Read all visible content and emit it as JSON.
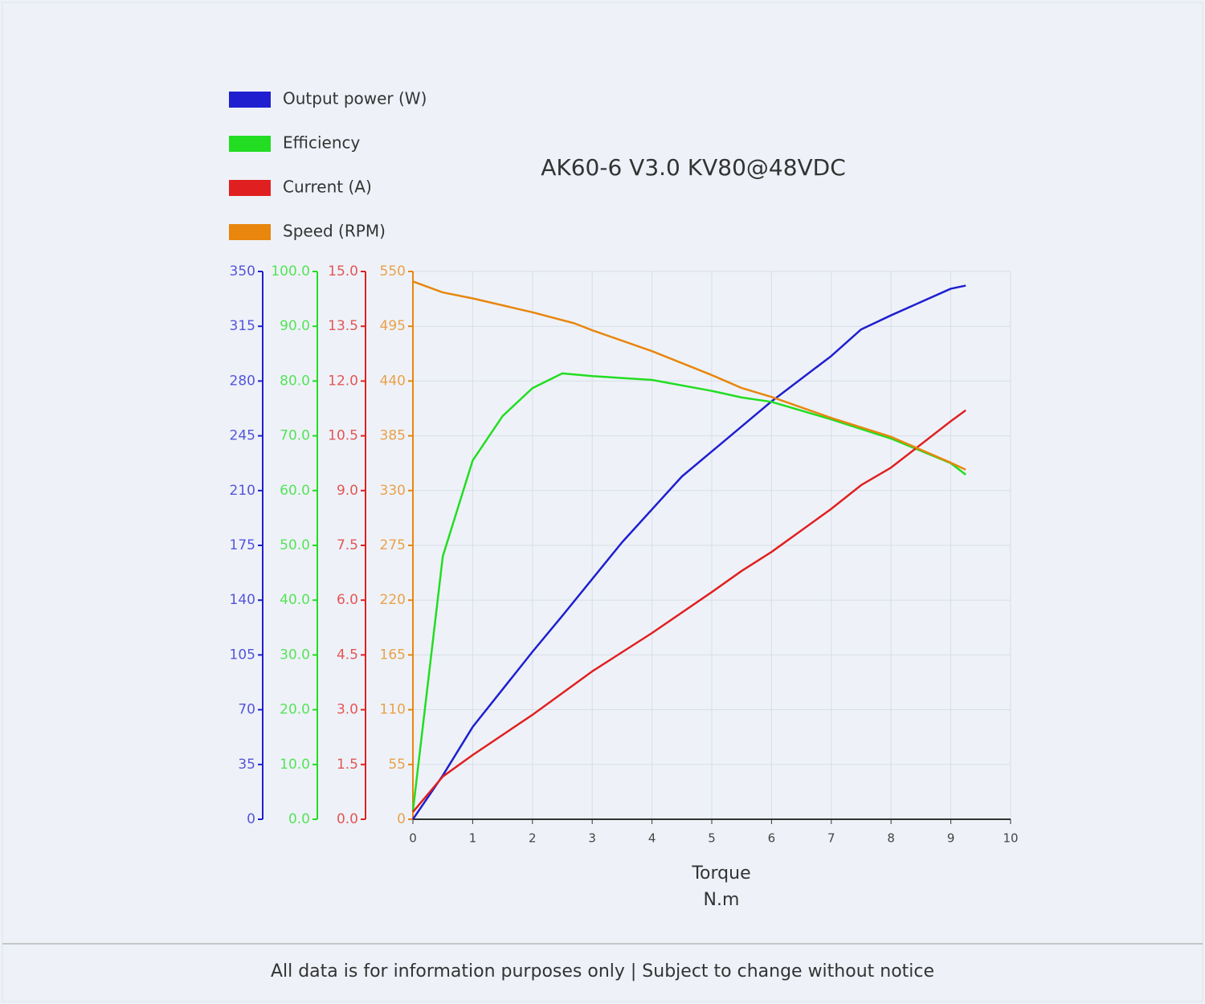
{
  "chart_data": {
    "type": "line",
    "title": "AK60-6 V3.0 KV80@48VDC",
    "xlabel": "Torque",
    "xunit": "N.m",
    "footer": "All data is for information purposes only | Subject to change without notice",
    "xlim": [
      0,
      10
    ],
    "xticks": [
      0,
      1,
      2,
      3,
      4,
      5,
      6,
      7,
      8,
      9,
      10
    ],
    "ylim": [
      0,
      350
    ],
    "yticks": [
      0,
      35,
      70,
      105,
      140,
      175,
      210,
      245,
      280,
      315,
      350
    ],
    "y2lim": [
      0,
      100
    ],
    "y2ticks": [
      {
        "value": 0,
        "label": "0.0"
      },
      {
        "value": 10,
        "label": "10.0"
      },
      {
        "value": 20,
        "label": "20.0"
      },
      {
        "value": 30,
        "label": "30.0"
      },
      {
        "value": 40,
        "label": "40.0"
      },
      {
        "value": 50,
        "label": "50.0"
      },
      {
        "value": 60,
        "label": "60.0"
      },
      {
        "value": 70,
        "label": "70.0"
      },
      {
        "value": 80,
        "label": "80.0"
      },
      {
        "value": 90,
        "label": "90.0"
      },
      {
        "value": 100,
        "label": "100.0"
      }
    ],
    "y3lim": [
      0,
      15
    ],
    "y3ticks": [
      {
        "value": 0,
        "label": "0.0"
      },
      1.5,
      {
        "value": 3,
        "label": "3.0"
      },
      4.5,
      {
        "value": 6,
        "label": "6.0"
      },
      7.5,
      {
        "value": 9,
        "label": "9.0"
      },
      10.5,
      {
        "value": 12,
        "label": "12.0"
      },
      13.5,
      {
        "value": 15,
        "label": "15.0"
      }
    ],
    "y4lim": [
      0,
      550
    ],
    "y4ticks": [
      0,
      55,
      110,
      165,
      220,
      275,
      330,
      385,
      440,
      495,
      550
    ],
    "grid": true,
    "legend": "top-left",
    "series": [
      {
        "name": "Output power (W)",
        "color": "#1f1fd0",
        "axis": "y",
        "x": [
          0,
          0.5,
          1,
          2,
          2.5,
          3.5,
          4.5,
          5.5,
          6,
          7,
          7.5,
          8,
          9,
          9.25
        ],
        "values": [
          0,
          28,
          59,
          107,
          130,
          177,
          219,
          251,
          267,
          296,
          313,
          322,
          339,
          341
        ]
      },
      {
        "name": "Efficiency",
        "color": "#22dd22",
        "axis": "y2",
        "x": [
          0,
          0.5,
          1,
          1.5,
          2,
          2.5,
          3,
          4,
          5,
          5.5,
          6,
          7,
          8,
          9,
          9.25
        ],
        "values": [
          1.5,
          48,
          65.5,
          73.6,
          78.7,
          81.4,
          80.9,
          80.2,
          78.2,
          77,
          76.2,
          73,
          69.5,
          65,
          62.9
        ]
      },
      {
        "name": "Current (A)",
        "color": "#e02020",
        "axis": "y3",
        "x": [
          0,
          0.5,
          1,
          2,
          3,
          4,
          5,
          5.5,
          6,
          7,
          7.5,
          8,
          9,
          9.25
        ],
        "values": [
          0.2,
          1.17,
          1.76,
          2.86,
          4.05,
          5.1,
          6.22,
          6.8,
          7.32,
          8.5,
          9.15,
          9.63,
          10.9,
          11.2
        ]
      },
      {
        "name": "Speed (RPM)",
        "color": "#e8860e",
        "axis": "y4",
        "x": [
          0,
          0.5,
          1,
          2,
          2.7,
          3,
          4,
          4.5,
          5,
          5.5,
          6,
          7,
          8,
          9,
          9.25
        ],
        "values": [
          540,
          529,
          523,
          509,
          498,
          491,
          470,
          458,
          446,
          433,
          424,
          403,
          384,
          358,
          351
        ]
      }
    ]
  }
}
